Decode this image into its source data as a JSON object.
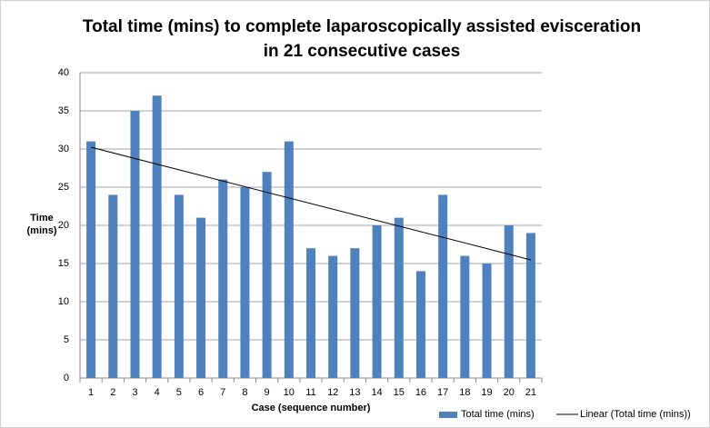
{
  "chart_data": {
    "type": "bar",
    "title": [
      "Total time (mins) to complete laparoscopically assisted evisceration",
      "in 21 consecutive cases"
    ],
    "ylabel": [
      "Time",
      "(mins)"
    ],
    "xlabel": "Case (sequence number)",
    "categories": [
      "1",
      "2",
      "3",
      "4",
      "5",
      "6",
      "7",
      "8",
      "9",
      "10",
      "11",
      "12",
      "13",
      "14",
      "15",
      "16",
      "17",
      "18",
      "19",
      "20",
      "21"
    ],
    "series": [
      {
        "name": "Total time (mins)",
        "color": "#4f81bd",
        "values": [
          31,
          24,
          35,
          37,
          24,
          21,
          26,
          25,
          27,
          31,
          17,
          16,
          17,
          20,
          21,
          14,
          24,
          16,
          15,
          20,
          19
        ]
      }
    ],
    "trendline": {
      "name": "Linear (Total time (mins))",
      "color": "#000000"
    },
    "ylim": [
      0,
      40
    ],
    "yticks": [
      0,
      5,
      10,
      15,
      20,
      25,
      30,
      35,
      40
    ],
    "grid": true,
    "legend": "bottom-right"
  }
}
